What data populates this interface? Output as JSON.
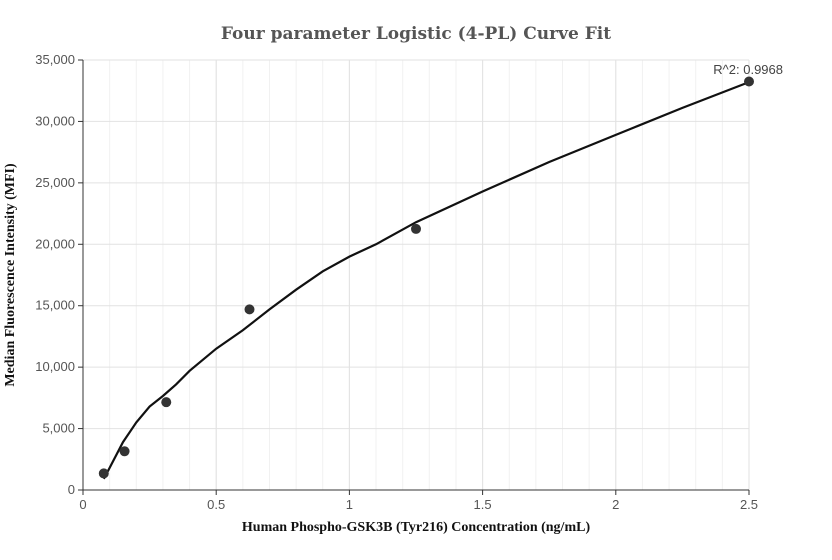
{
  "chart_data": {
    "type": "scatter",
    "title": "Four parameter Logistic (4-PL) Curve Fit",
    "xlabel": "Human Phospho-GSK3B (Tyr216) Concentration (ng/mL)",
    "ylabel": "Median Fluorescence Intensity (MFI)",
    "xlim": [
      0,
      2.5
    ],
    "ylim": [
      0,
      35000
    ],
    "x_ticks": [
      0,
      0.5,
      1,
      1.5,
      2,
      2.5
    ],
    "x_tick_labels": [
      "0",
      "0.5",
      "1",
      "1.5",
      "2",
      "2.5"
    ],
    "y_ticks": [
      0,
      5000,
      10000,
      15000,
      20000,
      25000,
      30000,
      35000
    ],
    "y_tick_labels": [
      "0",
      "5,000",
      "10,000",
      "15,000",
      "20,000",
      "25,000",
      "30,000",
      "35,000"
    ],
    "grid": true,
    "series": [
      {
        "kind": "points",
        "x": [
          0.078,
          0.156,
          0.3125,
          0.625,
          1.25,
          2.5
        ],
        "y": [
          1350,
          3150,
          7150,
          14700,
          21250,
          33250
        ]
      },
      {
        "kind": "fit-curve",
        "x": [
          0.078,
          0.1,
          0.15,
          0.2,
          0.25,
          0.3,
          0.35,
          0.4,
          0.5,
          0.6,
          0.7,
          0.8,
          0.9,
          1.0,
          1.1,
          1.25,
          1.5,
          1.75,
          2.0,
          2.25,
          2.5
        ],
        "y": [
          900,
          1800,
          3900,
          5500,
          6800,
          7650,
          8600,
          9700,
          11500,
          13000,
          14700,
          16300,
          17800,
          19000,
          20000,
          21800,
          24300,
          26700,
          28900,
          31100,
          33200
        ]
      }
    ],
    "annotations": [
      {
        "text": "R^2: 0.9968",
        "position": "top-right"
      }
    ]
  }
}
